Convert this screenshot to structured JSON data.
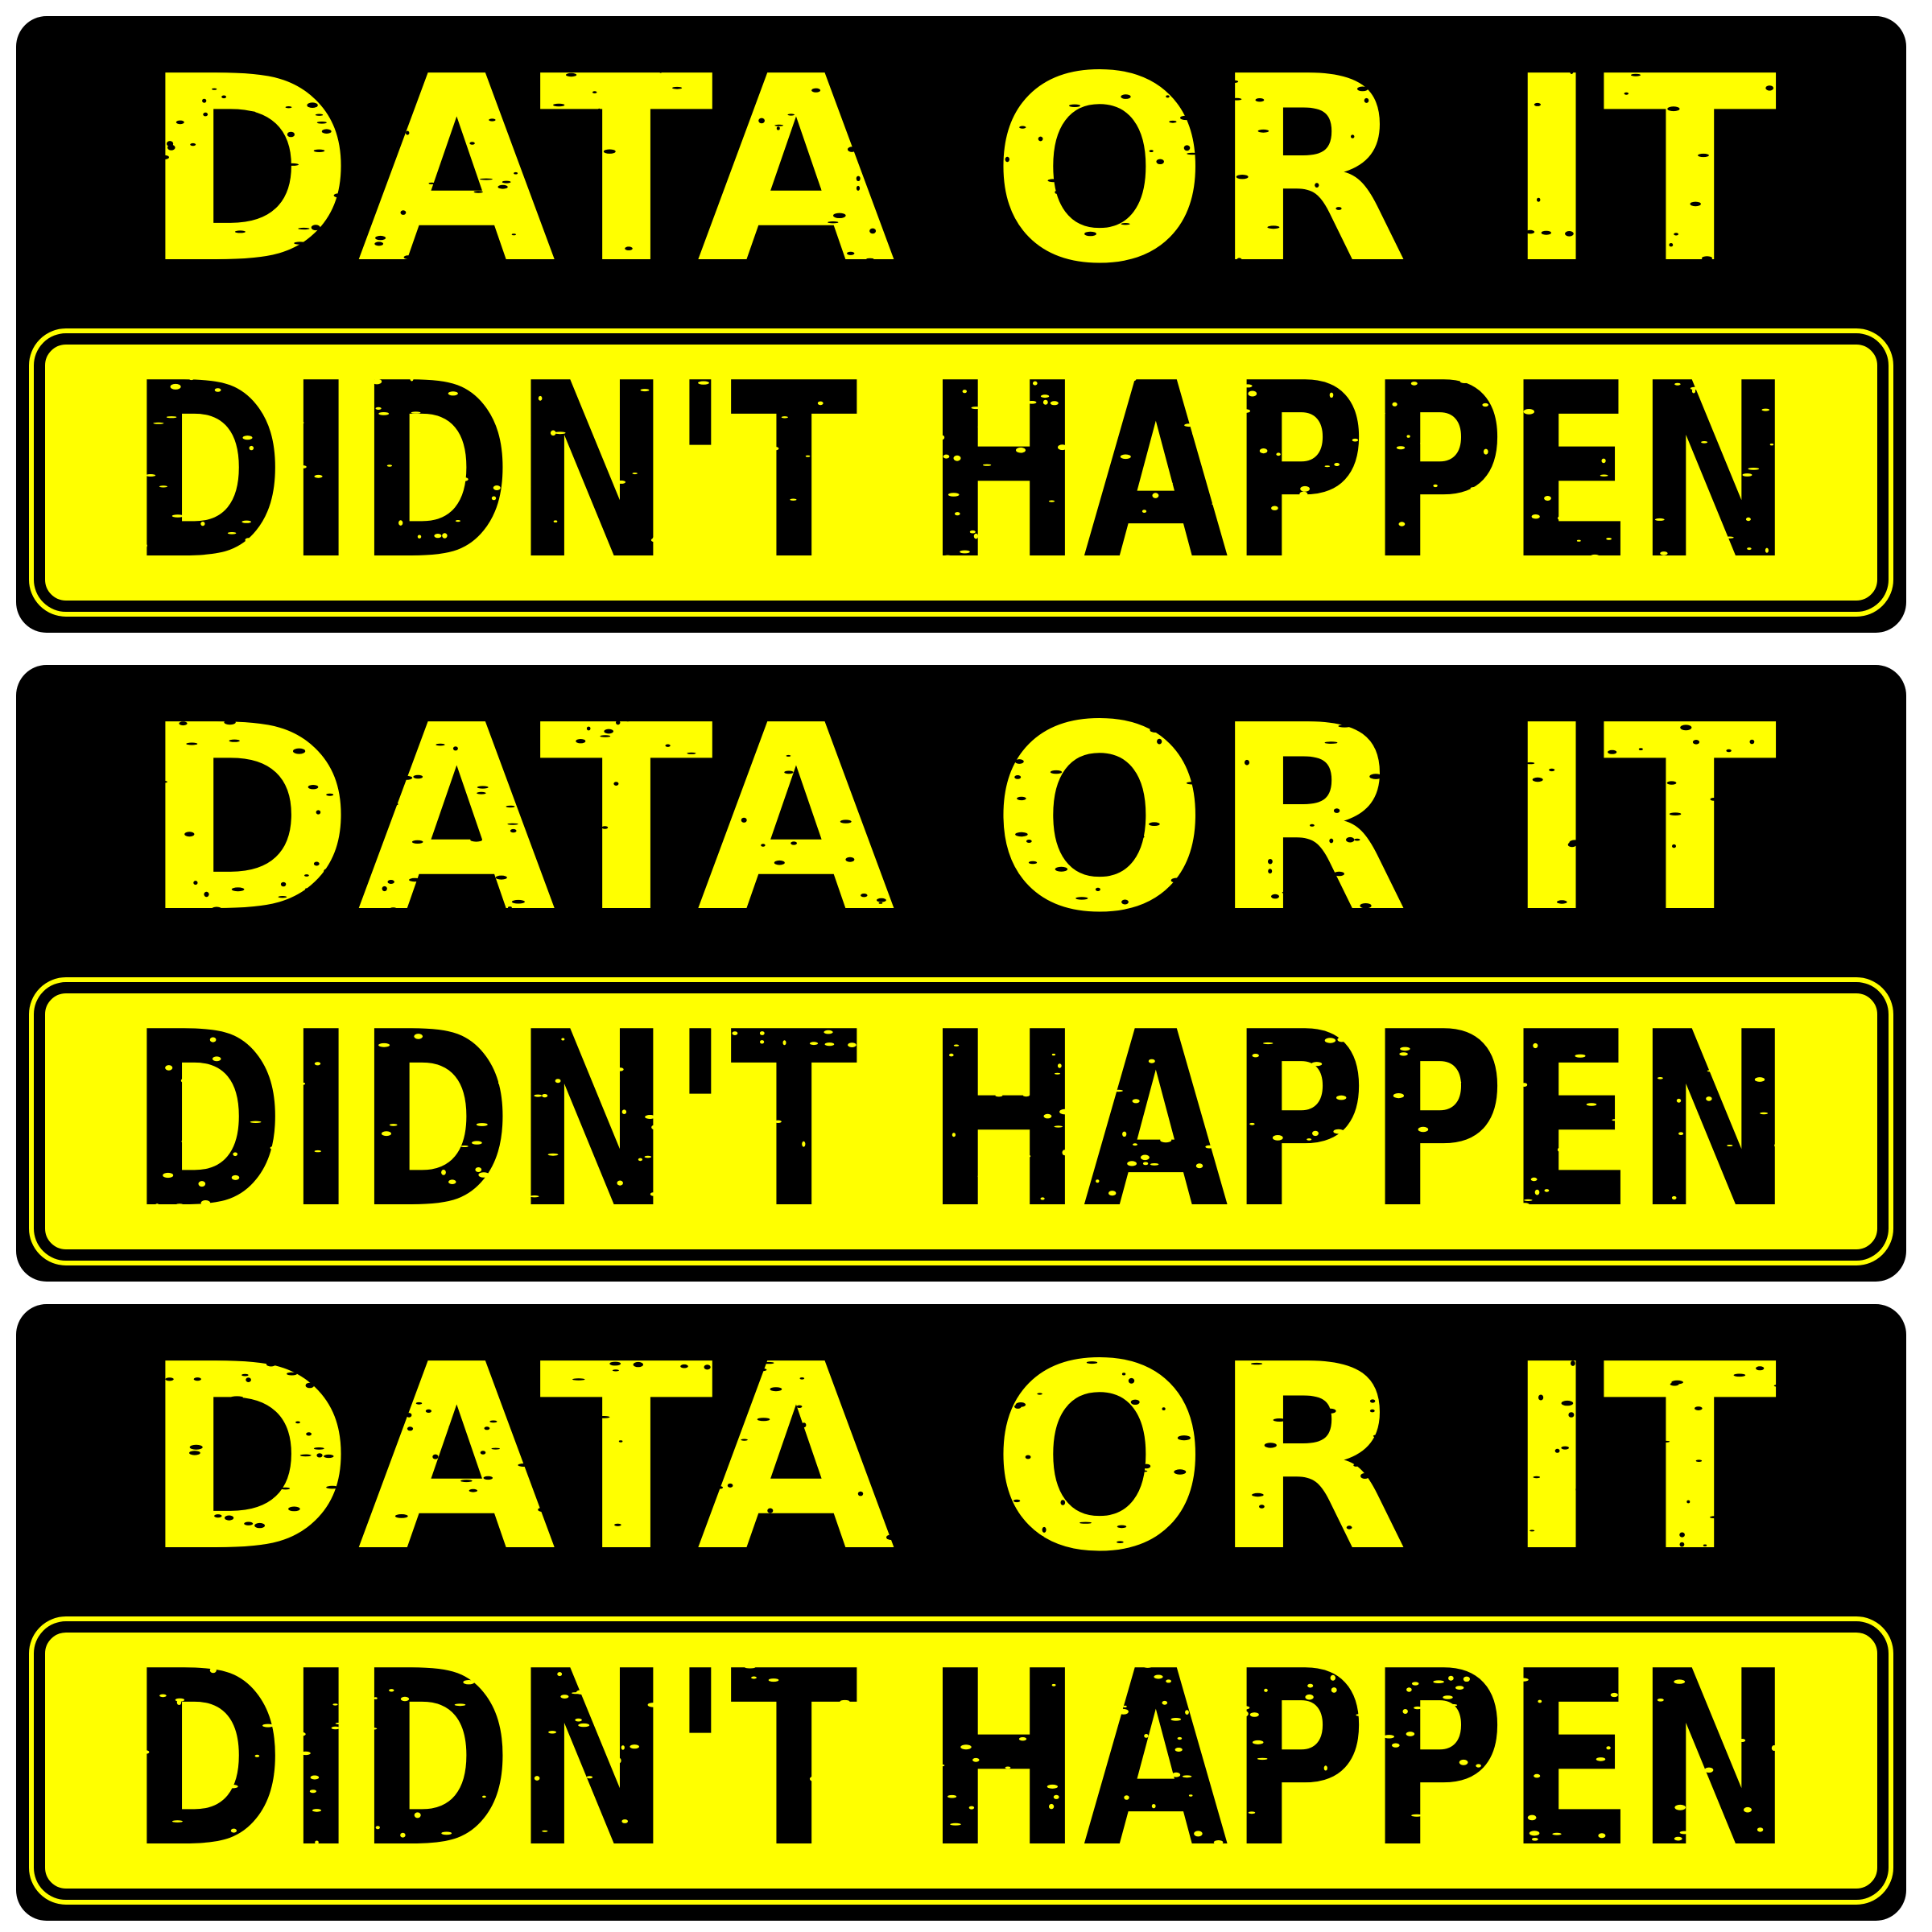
{
  "stickers": [
    {
      "line1": "DATA OR IT",
      "line2": "DIDN'T HAPPEN"
    },
    {
      "line1": "DATA OR IT",
      "line2": "DIDN'T HAPPEN"
    },
    {
      "line1": "DATA OR IT",
      "line2": "DIDN'T HAPPEN"
    }
  ],
  "colors": {
    "sticker_background": "#000000",
    "accent_yellow": "#ffff00",
    "page_background": "#ffffff"
  }
}
